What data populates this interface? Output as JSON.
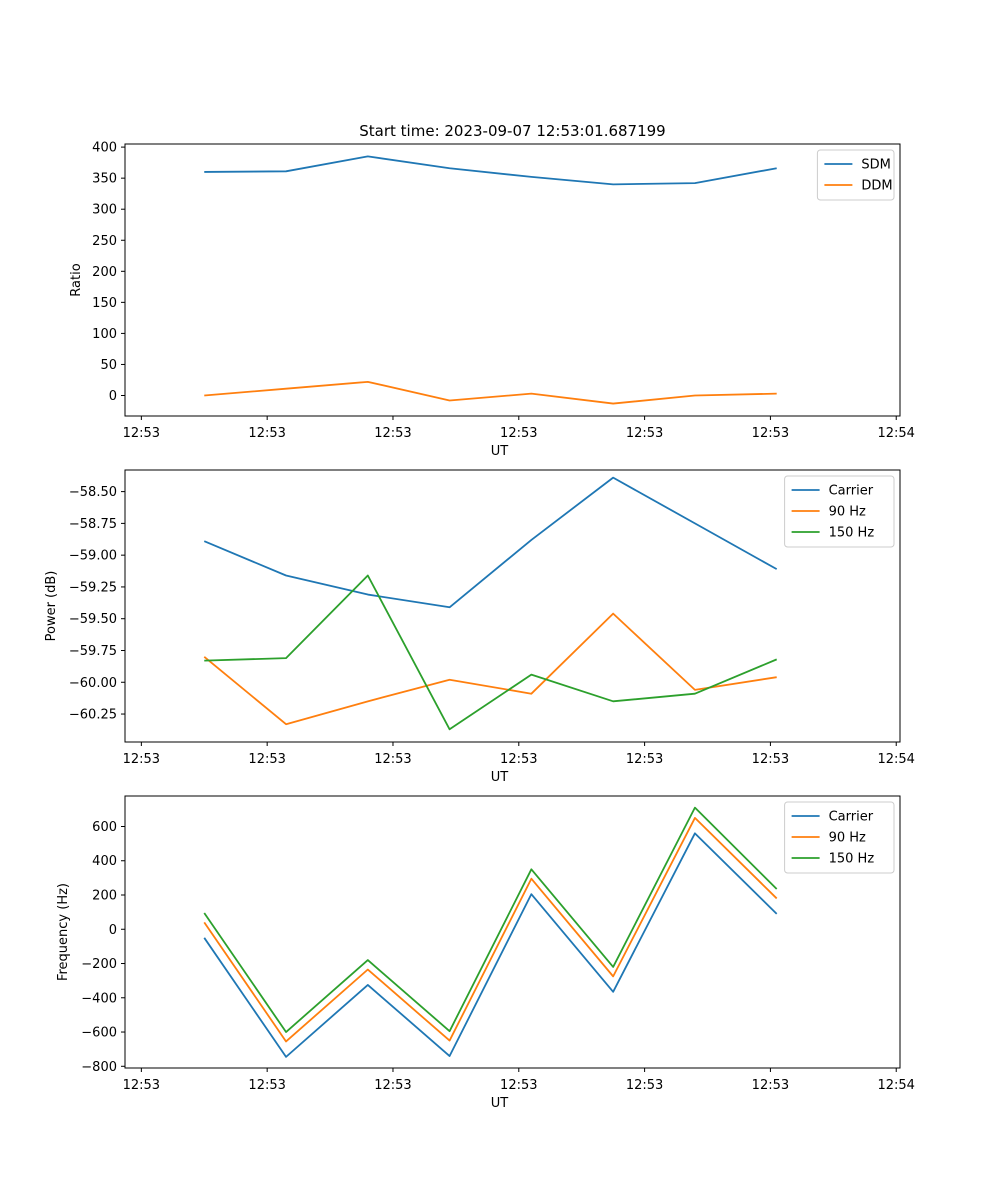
{
  "figure": {
    "title": "Start time: 2023-09-07 12:53:01.687199"
  },
  "chart_data": [
    {
      "type": "line",
      "xlabel": "UT",
      "ylabel": "Ratio",
      "x_tick_labels": [
        "12:53",
        "12:53",
        "12:53",
        "12:53",
        "12:53",
        "12:53",
        "12:54"
      ],
      "x_tick_positions": [
        0,
        1,
        2,
        3,
        4,
        5,
        6
      ],
      "xlim": [
        -0.13,
        6.03
      ],
      "ylim": [
        -33,
        405
      ],
      "yticks": [
        0,
        50,
        100,
        150,
        200,
        250,
        300,
        350,
        400
      ],
      "ytick_labels": [
        "0",
        "50",
        "100",
        "150",
        "200",
        "250",
        "300",
        "350",
        "400"
      ],
      "legend_position": "top-right",
      "x": [
        0.5,
        1.15,
        1.8,
        2.45,
        3.1,
        3.75,
        4.4,
        5.05
      ],
      "series": [
        {
          "name": "SDM",
          "color": "#1f77b4",
          "values": [
            360,
            361,
            385,
            366,
            352,
            340,
            342,
            366
          ]
        },
        {
          "name": "DDM",
          "color": "#ff7f0e",
          "values": [
            0,
            11,
            22,
            -8,
            3,
            -13,
            0,
            3
          ]
        }
      ]
    },
    {
      "type": "line",
      "xlabel": "UT",
      "ylabel": "Power (dB)",
      "x_tick_labels": [
        "12:53",
        "12:53",
        "12:53",
        "12:53",
        "12:53",
        "12:53",
        "12:54"
      ],
      "x_tick_positions": [
        0,
        1,
        2,
        3,
        4,
        5,
        6
      ],
      "xlim": [
        -0.13,
        6.03
      ],
      "ylim": [
        -60.47,
        -58.33
      ],
      "yticks": [
        -60.25,
        -60.0,
        -59.75,
        -59.5,
        -59.25,
        -59.0,
        -58.75,
        -58.5
      ],
      "ytick_labels": [
        "−60.25",
        "−60.00",
        "−59.75",
        "−59.50",
        "−59.25",
        "−59.00",
        "−58.75",
        "−58.50"
      ],
      "legend_position": "top-right",
      "x": [
        0.5,
        1.15,
        1.8,
        2.45,
        3.1,
        3.75,
        4.4,
        5.05
      ],
      "series": [
        {
          "name": "Carrier",
          "color": "#1f77b4",
          "values": [
            -58.89,
            -59.16,
            -59.31,
            -59.41,
            -58.88,
            -58.39,
            -58.75,
            -59.11
          ]
        },
        {
          "name": "90 Hz",
          "color": "#ff7f0e",
          "values": [
            -59.8,
            -60.33,
            -60.15,
            -59.98,
            -60.09,
            -59.46,
            -60.06,
            -59.96
          ]
        },
        {
          "name": "150 Hz",
          "color": "#2ca02c",
          "values": [
            -59.83,
            -59.81,
            -59.16,
            -60.37,
            -59.94,
            -60.15,
            -60.09,
            -59.82
          ]
        }
      ]
    },
    {
      "type": "line",
      "xlabel": "UT",
      "ylabel": "Frequency (Hz)",
      "x_tick_labels": [
        "12:53",
        "12:53",
        "12:53",
        "12:53",
        "12:53",
        "12:53",
        "12:54"
      ],
      "x_tick_positions": [
        0,
        1,
        2,
        3,
        4,
        5,
        6
      ],
      "xlim": [
        -0.13,
        6.03
      ],
      "ylim": [
        -810,
        778
      ],
      "yticks": [
        -800,
        -600,
        -400,
        -200,
        0,
        200,
        400,
        600
      ],
      "ytick_labels": [
        "−800",
        "−600",
        "−400",
        "−200",
        "0",
        "200",
        "400",
        "600"
      ],
      "legend_position": "top-right",
      "x": [
        0.5,
        1.15,
        1.8,
        2.45,
        3.1,
        3.75,
        4.4,
        5.05
      ],
      "series": [
        {
          "name": "Carrier",
          "color": "#1f77b4",
          "values": [
            -50,
            -745,
            -325,
            -740,
            205,
            -365,
            560,
            90
          ]
        },
        {
          "name": "90 Hz",
          "color": "#ff7f0e",
          "values": [
            40,
            -655,
            -235,
            -650,
            295,
            -275,
            650,
            180
          ]
        },
        {
          "name": "150 Hz",
          "color": "#2ca02c",
          "values": [
            95,
            -600,
            -180,
            -595,
            350,
            -220,
            710,
            235
          ]
        }
      ]
    }
  ]
}
